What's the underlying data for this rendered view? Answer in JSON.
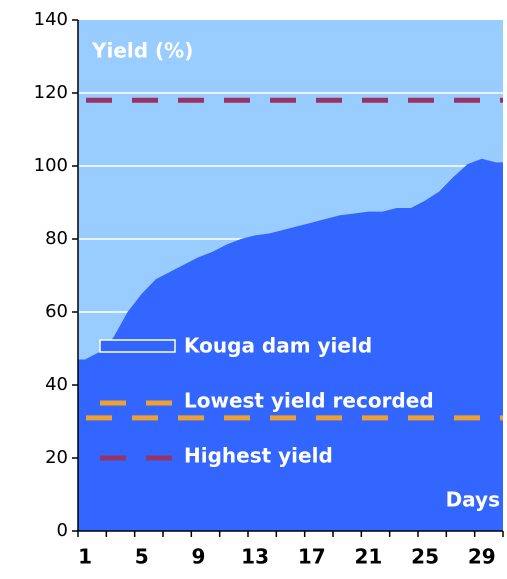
{
  "chart_data": {
    "type": "area",
    "y_label": "Yield (%)",
    "x_label": "Days",
    "categories": [
      "1",
      null,
      null,
      null,
      "5",
      null,
      null,
      null,
      "9",
      null,
      null,
      null,
      "13",
      null,
      null,
      null,
      "17",
      null,
      null,
      null,
      "21",
      null,
      null,
      null,
      "25",
      null,
      null,
      null,
      "29",
      null
    ],
    "series": [
      {
        "name": "Kouga dam yield",
        "color": "#3366ff",
        "values": [
          47,
          49,
          53,
          60,
          65,
          69,
          71,
          73,
          75,
          76.5,
          78.5,
          80,
          81,
          81.5,
          82.5,
          83.5,
          84.5,
          85.5,
          86.5,
          87,
          87.5,
          87.5,
          88.5,
          88.5,
          90.5,
          93,
          97,
          100.5,
          102,
          101
        ]
      }
    ],
    "reference_lines": [
      {
        "name": "Lowest yield recorded",
        "color": "#f0a030",
        "value": 31
      },
      {
        "name": "Highest yield",
        "color": "#993366",
        "value": 118
      }
    ],
    "plot_background": "#99ccff",
    "ylim": [
      0,
      140
    ],
    "yticks": [
      0,
      20,
      40,
      60,
      80,
      100,
      120,
      140
    ],
    "grid": true
  }
}
